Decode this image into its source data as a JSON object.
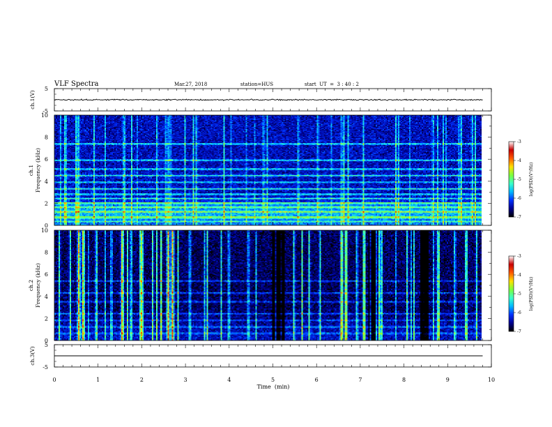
{
  "header": {
    "title": "VLF Spectra",
    "date": "Mar.27, 2018",
    "station": "station=HUS",
    "start": "start  UT  =  3 : 40 : 2"
  },
  "colors": {
    "background": "#ffffff",
    "axis": "#000000",
    "spectrogram_floor": "#0a0a3a",
    "trace": "#000000"
  },
  "colormap": [
    "#000000",
    "#00008f",
    "#0030ff",
    "#00b8ff",
    "#3cffc8",
    "#7dff3c",
    "#ffe000",
    "#ff5a00",
    "#c80000",
    "#ffffff"
  ],
  "chart_data": [
    {
      "type": "line",
      "name": "ch1-waveform",
      "ylabel": "ch.1(V)",
      "ylim": [
        -5,
        5
      ],
      "yticks": [
        5,
        -5
      ],
      "xlim": [
        0,
        10
      ],
      "x_extent": [
        0,
        9.8
      ],
      "mean_value": 0,
      "noise_amplitude": 0.4
    },
    {
      "type": "heatmap",
      "name": "ch1-spectrogram",
      "ylabel_line1": "ch.1",
      "ylabel_line2": "Frequency (kHz)",
      "ylim": [
        0,
        10
      ],
      "yticks": [
        0,
        2,
        4,
        6,
        8,
        10
      ],
      "xlim": [
        0,
        10
      ],
      "x_extent": [
        0,
        9.8
      ],
      "colorbar_label": "log(PSD)(V²/Hz)",
      "colorbar_range": [
        -7,
        -3
      ],
      "colorbar_ticks": [
        "-3",
        "-4",
        "-5",
        "-6",
        "-7"
      ],
      "background_level": -6.4,
      "bright_band_frequencies": [
        0.3,
        0.7,
        1.2,
        1.6,
        2.0,
        2.4,
        2.8,
        3.3,
        3.9,
        4.5,
        5.1,
        5.9,
        7.4
      ],
      "strong_emission_range": [
        0.5,
        2.1
      ],
      "vertical_bursts_min": [
        0.25,
        0.55,
        0.9,
        1.6,
        2.35,
        2.55,
        2.65,
        3.25,
        4.8,
        5.6,
        6.05,
        6.6,
        6.75,
        7.1,
        7.9,
        8.7,
        9.3,
        9.6
      ]
    },
    {
      "type": "heatmap",
      "name": "ch2-spectrogram",
      "ylabel_line1": "ch.2",
      "ylabel_line2": "Frequency (kHz)",
      "ylim": [
        0,
        10
      ],
      "yticks": [
        0,
        2,
        4,
        6,
        8,
        10
      ],
      "xlim": [
        0,
        10
      ],
      "x_extent": [
        0,
        9.8
      ],
      "colorbar_label": "log(PSD)(V²/Hz)",
      "colorbar_range": [
        -7,
        -3
      ],
      "colorbar_ticks": [
        "-3",
        "-4",
        "-5",
        "-6",
        "-7"
      ],
      "background_level": -6.7,
      "bright_band_frequencies": [
        0.6,
        1.2,
        1.8,
        2.4,
        3.5,
        4.3,
        5.4
      ],
      "strong_burst_min": [
        0.55,
        0.65,
        1.55,
        2.0,
        2.6,
        2.7,
        6.6,
        6.7
      ],
      "vertical_bursts_min": [
        0.1,
        0.35,
        0.55,
        0.65,
        0.95,
        1.3,
        1.55,
        1.75,
        2.0,
        2.25,
        2.6,
        2.7,
        3.1,
        3.5,
        4.0,
        4.45,
        5.5,
        5.85,
        6.1,
        6.6,
        6.7,
        6.95,
        7.5,
        8.1,
        8.8,
        9.2,
        9.45,
        9.7
      ],
      "quiet_intervals_min": [
        [
          5.0,
          5.3
        ],
        [
          7.2,
          7.4
        ],
        [
          8.4,
          8.6
        ]
      ]
    },
    {
      "type": "line",
      "name": "ch3-waveform",
      "ylabel": "ch.3(V)",
      "ylim": [
        -5,
        5
      ],
      "yticks": [
        5,
        -5
      ],
      "xlim": [
        0,
        10
      ],
      "x_extent": [
        0,
        9.8
      ],
      "mean_value": 0,
      "noise_amplitude": 0,
      "xlabel": "Time  (min)",
      "xticks": [
        0,
        1,
        2,
        3,
        4,
        5,
        6,
        7,
        8,
        9,
        10
      ]
    }
  ]
}
